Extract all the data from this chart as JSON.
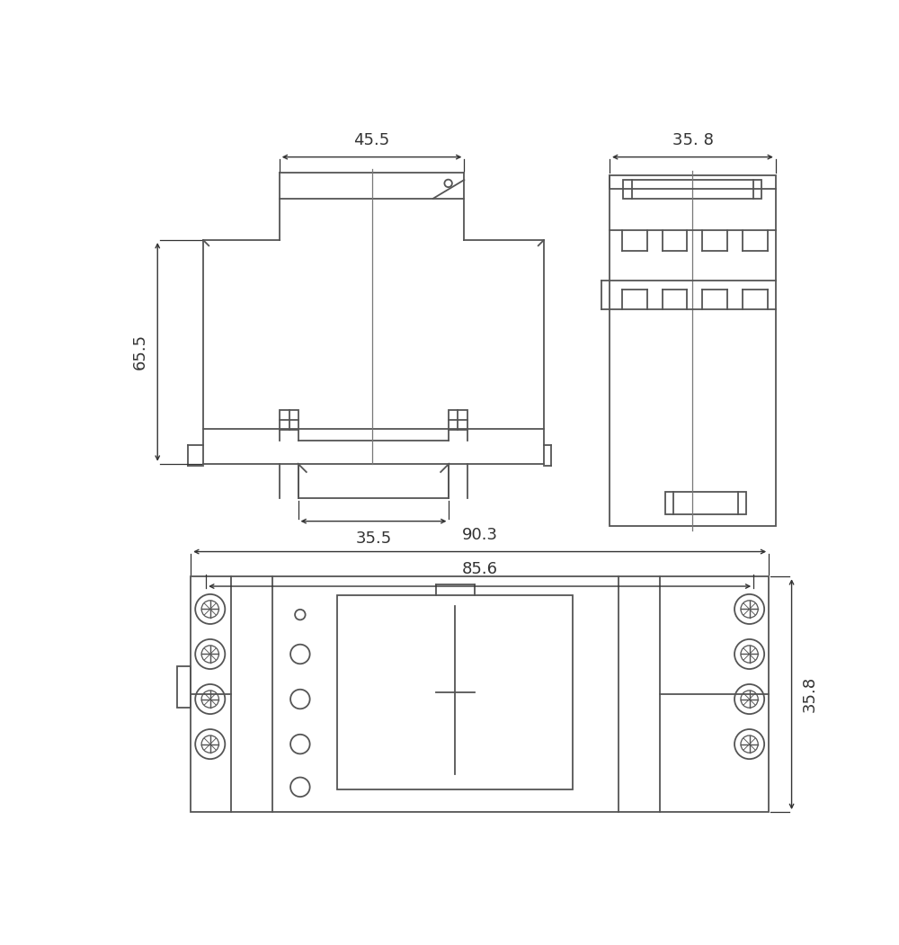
{
  "bg_color": "#ffffff",
  "line_color": "#555555",
  "lw": 1.3,
  "dim_color": "#333333",
  "font_size": 13,
  "annotations": {
    "dim_45_5": "45.5",
    "dim_35_8_top": "35. 8",
    "dim_65_5": "65.5",
    "dim_35_5": "35.5",
    "dim_90_3": "90.3",
    "dim_85_6": "85.6",
    "dim_35_8_bot": "35.8"
  }
}
